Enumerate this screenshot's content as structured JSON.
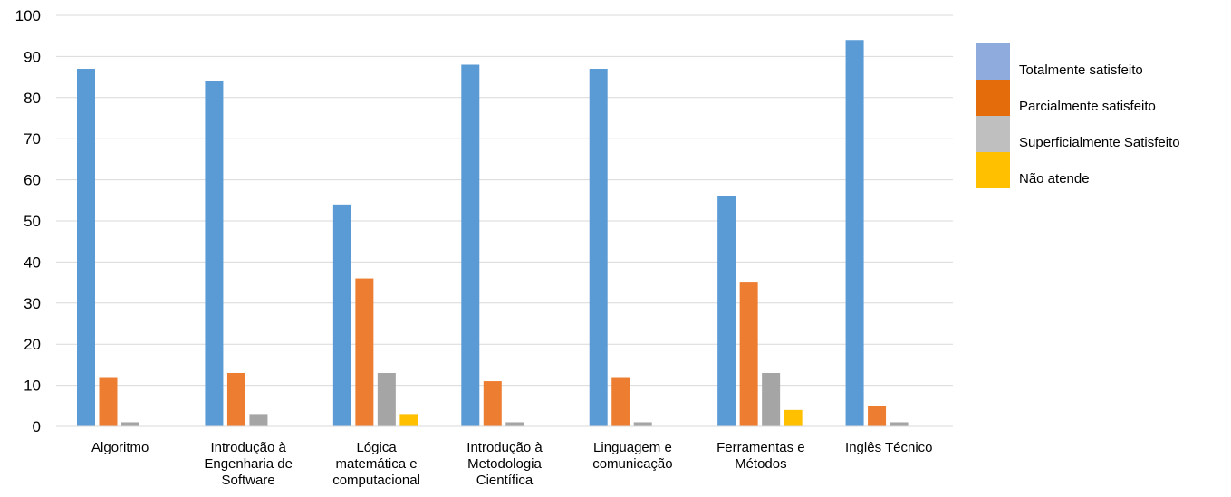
{
  "chart_data": {
    "type": "bar",
    "categories": [
      [
        "Algoritmo"
      ],
      [
        "Introdução à",
        "Engenharia de",
        "Software"
      ],
      [
        "Lógica",
        "matemática e",
        "computacional"
      ],
      [
        "Introdução à",
        "Metodologia",
        "Científica"
      ],
      [
        "Linguagem e",
        "comunicação"
      ],
      [
        "Ferramentas e",
        "Métodos"
      ],
      [
        "Inglês Técnico"
      ]
    ],
    "series": [
      {
        "name": "Totalmente satisfeito",
        "values": [
          87,
          84,
          54,
          88,
          87,
          56,
          94
        ]
      },
      {
        "name": "Parcialmente satisfeito",
        "values": [
          12,
          13,
          36,
          11,
          12,
          35,
          5
        ]
      },
      {
        "name": "Superficialmente Satisfeito",
        "values": [
          1,
          3,
          13,
          1,
          1,
          13,
          1
        ]
      },
      {
        "name": "Não atende",
        "values": [
          0,
          0,
          3,
          0,
          0,
          4,
          0
        ]
      }
    ],
    "bar_colors": [
      "#5b9bd5",
      "#ed7d31",
      "#a5a5a5",
      "#ffc000"
    ],
    "legend_swatch_colors": [
      "#8faadc",
      "#e46c0a",
      "#bfbfbf",
      "#ffc000"
    ],
    "ylim": [
      0,
      100
    ],
    "yticks": [
      0,
      10,
      20,
      30,
      40,
      50,
      60,
      70,
      80,
      90,
      100
    ],
    "grid": true,
    "legend_position": "right",
    "title": "",
    "xlabel": "",
    "ylabel": ""
  }
}
